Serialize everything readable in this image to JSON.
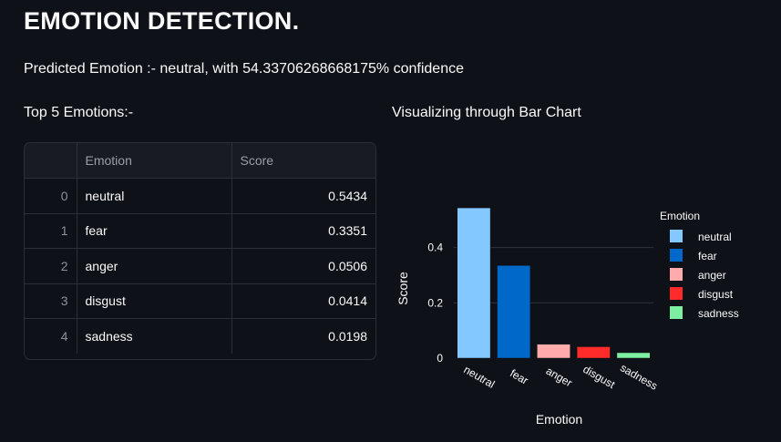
{
  "page": {
    "title": "EMOTION DETECTION.",
    "prediction": "Predicted Emotion :- neutral, with 54.33706268668175% confidence",
    "table_heading": "Top 5 Emotions:-",
    "chart_heading": "Visualizing through Bar Chart"
  },
  "table": {
    "headers": [
      "",
      "Emotion",
      "Score"
    ],
    "rows": [
      {
        "index": "0",
        "emotion": "neutral",
        "score": "0.5434"
      },
      {
        "index": "1",
        "emotion": "fear",
        "score": "0.3351"
      },
      {
        "index": "2",
        "emotion": "anger",
        "score": "0.0506"
      },
      {
        "index": "3",
        "emotion": "disgust",
        "score": "0.0414"
      },
      {
        "index": "4",
        "emotion": "sadness",
        "score": "0.0198"
      }
    ]
  },
  "chart_data": {
    "type": "bar",
    "categories": [
      "neutral",
      "fear",
      "anger",
      "disgust",
      "sadness"
    ],
    "values": [
      0.5434,
      0.3351,
      0.0506,
      0.0414,
      0.0198
    ],
    "colors": [
      "#83c9ff",
      "#0068c9",
      "#ffabab",
      "#ff2b2b",
      "#7defa1"
    ],
    "xlabel": "Emotion",
    "ylabel": "Score",
    "yticks": [
      0,
      0.2,
      0.4
    ],
    "ytick_labels": [
      "0",
      "0.2",
      "0.4"
    ],
    "ylim": [
      0,
      0.57
    ],
    "legend_title": "Emotion",
    "legend_position": "right",
    "grid": true
  }
}
